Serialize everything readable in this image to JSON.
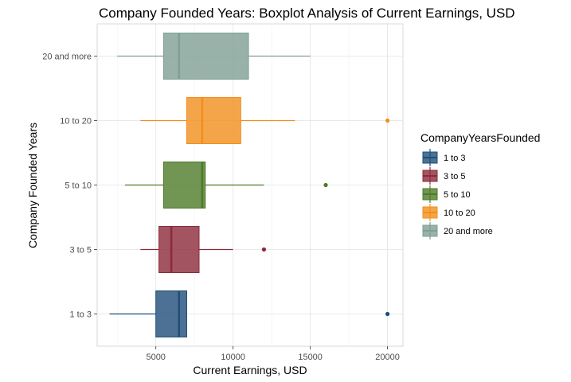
{
  "chart_data": {
    "type": "boxplot",
    "orientation": "horizontal",
    "title": "Company Founded Years: Boxplot Analysis of Current Earnings, USD",
    "xlabel": "Current Earnings, USD",
    "ylabel": "Company Founded Years",
    "xlim": [
      1200,
      21000
    ],
    "x_ticks": [
      5000,
      10000,
      15000,
      20000
    ],
    "grid": true,
    "legend_title": "CompanyYearsFounded",
    "legend_position": "right",
    "categories": [
      "1 to 3",
      "3 to 5",
      "5 to 10",
      "10 to 20",
      "20 and more"
    ],
    "series": [
      {
        "name": "1 to 3",
        "color": "#1f4e79",
        "whisker_low": 2000,
        "q1": 5000,
        "median": 6500,
        "q3": 7000,
        "whisker_high": 7000,
        "outliers": [
          20000
        ]
      },
      {
        "name": "3 to 5",
        "color": "#8b2a3a",
        "whisker_low": 4000,
        "q1": 5200,
        "median": 6000,
        "q3": 7800,
        "whisker_high": 10000,
        "outliers": [
          12000
        ]
      },
      {
        "name": "5 to 10",
        "color": "#4e7a27",
        "whisker_low": 3000,
        "q1": 5500,
        "median": 8000,
        "q3": 8200,
        "whisker_high": 12000,
        "outliers": [
          16000
        ]
      },
      {
        "name": "10 to 20",
        "color": "#f28e1c",
        "whisker_low": 4000,
        "q1": 7000,
        "median": 8000,
        "q3": 10500,
        "whisker_high": 14000,
        "outliers": [
          20000
        ]
      },
      {
        "name": "20 and more",
        "color": "#7f9f94",
        "whisker_low": 2500,
        "q1": 5500,
        "median": 6500,
        "q3": 11000,
        "whisker_high": 15000,
        "outliers": []
      }
    ]
  }
}
